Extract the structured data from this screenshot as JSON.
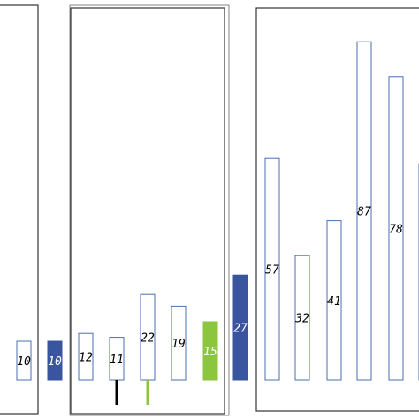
{
  "chart_data": {
    "type": "bar",
    "title": "",
    "xlabel": "",
    "ylabel": "",
    "categories": [
      "",
      "",
      "",
      "",
      "",
      "",
      "",
      "",
      "",
      "",
      "",
      "",
      "",
      ""
    ],
    "values": [
      10,
      10,
      12,
      11,
      22,
      19,
      15,
      27,
      57,
      32,
      41,
      87,
      78,
      null
    ],
    "labels": [
      "10",
      "10",
      "12",
      "11",
      "22",
      "19",
      "15",
      "27",
      "57",
      "32",
      "41",
      "87",
      "78",
      ""
    ],
    "styles": [
      "outline",
      "filled-blue",
      "outline",
      "outline",
      "outline",
      "outline",
      "filled-green",
      "filled-blue",
      "outline",
      "outline",
      "outline",
      "outline",
      "outline",
      "outline-partial"
    ],
    "whiskers": [
      {
        "bar": 3,
        "color": "#000000"
      },
      {
        "bar": 4,
        "color": "#8cc63f"
      }
    ],
    "groups": [
      {
        "bars": [
          0
        ],
        "note": "left group box (partially cut off)"
      },
      {
        "bars": [
          2,
          3,
          4,
          5,
          6
        ],
        "note": "middle group box"
      },
      {
        "bars": [
          8,
          9,
          10,
          11,
          12,
          13
        ],
        "note": "right group box (partially cut off)"
      }
    ],
    "colors": {
      "outline": "#4a6fb0",
      "blue": "#3a55a0",
      "green": "#8cc63f",
      "box": "#333333",
      "label_on_outline": "#000000",
      "label_on_fill": "#ffffff"
    },
    "grid": false,
    "legend": "none"
  }
}
